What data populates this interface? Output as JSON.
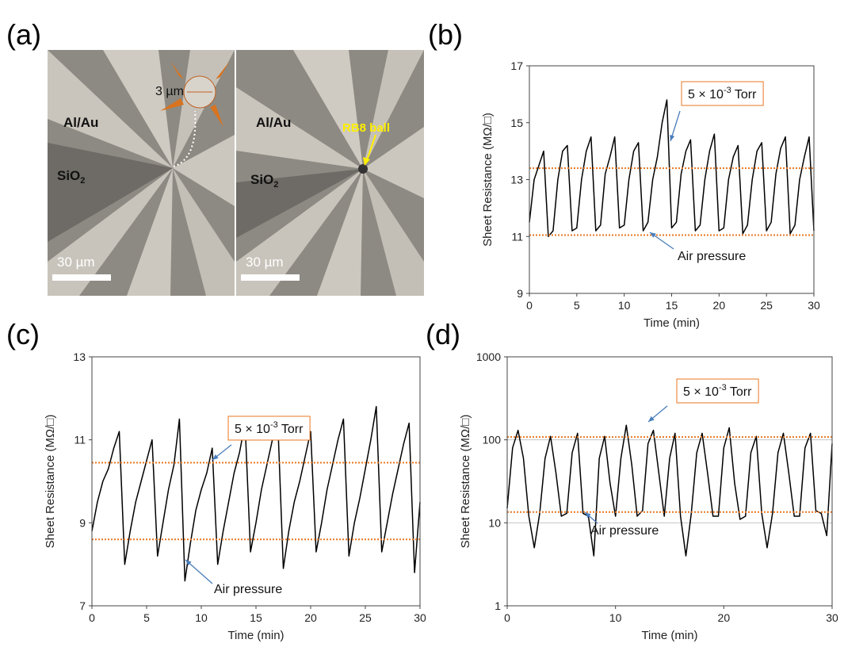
{
  "panel_a": {
    "panel_label": "(a)",
    "metal_label": "Al/Au",
    "oxide_label": "SiO",
    "oxide_subscript": "2",
    "inset_scale": "3 µm",
    "scale_bar": "30 µm",
    "ball_label": "RB8 ball"
  },
  "chart_data": [
    {
      "type": "line",
      "panel_label": "(b)",
      "x_label": "Time (min)",
      "y_label": "Sheet Resistance (MΩ/□)",
      "xlim": [
        0,
        30
      ],
      "xticks": [
        0,
        5,
        10,
        15,
        20,
        25,
        30
      ],
      "ylim": [
        9,
        17
      ],
      "yticks": [
        9,
        11,
        13,
        15,
        17
      ],
      "yscale": "linear",
      "x": [
        0,
        0.5,
        1,
        1.5,
        2,
        2.5,
        3,
        3.5,
        4,
        4.5,
        5,
        5.5,
        6,
        6.5,
        7,
        7.5,
        8,
        8.5,
        9,
        9.5,
        10,
        10.5,
        11,
        11.5,
        12,
        12.5,
        13,
        13.5,
        14,
        14.5,
        15,
        15.5,
        16,
        16.5,
        17,
        17.5,
        18,
        18.5,
        19,
        19.5,
        20,
        20.5,
        21,
        21.5,
        22,
        22.5,
        23,
        23.5,
        24,
        24.5,
        25,
        25.5,
        26,
        26.5,
        27,
        27.5,
        28,
        28.5,
        29,
        29.5,
        30
      ],
      "series": [
        {
          "color": "#000000",
          "values": [
            11.5,
            13,
            13.5,
            14,
            11,
            11.2,
            13,
            14,
            14.2,
            11.2,
            11.3,
            13,
            14,
            14.5,
            11.2,
            11.4,
            13.2,
            13.8,
            14.5,
            11.3,
            11.4,
            13,
            14,
            14.3,
            11.2,
            11.5,
            13,
            13.8,
            15,
            15.8,
            11.3,
            11.5,
            13.2,
            14,
            14.4,
            11.2,
            11.4,
            13,
            14,
            14.6,
            11.2,
            11.3,
            13,
            13.8,
            14.2,
            11.1,
            11.4,
            13,
            14,
            14.3,
            11.2,
            11.5,
            13.2,
            14.1,
            14.5,
            11.1,
            11.4,
            13,
            13.8,
            14.5,
            11.2
          ]
        }
      ],
      "reference_lines": [
        {
          "value": 13.4,
          "color": "#e87722"
        },
        {
          "value": 11.05,
          "color": "#e87722"
        }
      ],
      "annotations": [
        {
          "text": "5 × 10",
          "superscript": "-3",
          "suffix": " Torr"
        },
        {
          "text": "Air pressure"
        }
      ]
    },
    {
      "type": "line",
      "panel_label": "(c)",
      "x_label": "Time (min)",
      "y_label": "Sheet Resistance (MΩ/□)",
      "xlim": [
        0,
        30
      ],
      "xticks": [
        0,
        5,
        10,
        15,
        20,
        25,
        30
      ],
      "ylim": [
        7,
        13
      ],
      "yticks": [
        7,
        9,
        11,
        13
      ],
      "yscale": "linear",
      "x": [
        0,
        0.5,
        1,
        1.5,
        2,
        2.5,
        3,
        3.5,
        4,
        4.5,
        5,
        5.5,
        6,
        6.5,
        7,
        7.5,
        8,
        8.5,
        9,
        9.5,
        10,
        10.5,
        11,
        11.5,
        12,
        12.5,
        13,
        13.5,
        14,
        14.5,
        15,
        15.5,
        16,
        16.5,
        17,
        17.5,
        18,
        18.5,
        19,
        19.5,
        20,
        20.5,
        21,
        21.5,
        22,
        22.5,
        23,
        23.5,
        24,
        24.5,
        25,
        25.5,
        26,
        26.5,
        27,
        27.5,
        28,
        28.5,
        29,
        29.5,
        30
      ],
      "series": [
        {
          "color": "#000000",
          "values": [
            8.8,
            9.5,
            10,
            10.3,
            10.8,
            11.2,
            8,
            8.8,
            9.5,
            10,
            10.5,
            11,
            8.2,
            9,
            9.8,
            10.4,
            11.5,
            7.6,
            8.5,
            9.3,
            9.8,
            10.2,
            10.8,
            8,
            8.8,
            9.5,
            10.2,
            10.7,
            11.4,
            8.3,
            9,
            9.8,
            10.4,
            11,
            11.4,
            7.9,
            8.8,
            9.5,
            10,
            10.6,
            11.2,
            8.3,
            9,
            9.8,
            10.4,
            11,
            11.5,
            8.2,
            9,
            9.6,
            10.3,
            11,
            11.8,
            8.3,
            9,
            9.7,
            10.3,
            10.9,
            11.4,
            7.8,
            9.5
          ]
        }
      ],
      "reference_lines": [
        {
          "value": 10.45,
          "color": "#e87722"
        },
        {
          "value": 8.6,
          "color": "#e87722"
        }
      ],
      "annotations": [
        {
          "text": "5 × 10",
          "superscript": "-3",
          "suffix": " Torr"
        },
        {
          "text": "Air pressure"
        }
      ]
    },
    {
      "type": "line",
      "panel_label": "(d)",
      "x_label": "Time (min)",
      "y_label": "Sheet Resistance (MΩ/□)",
      "xlim": [
        0,
        30
      ],
      "xticks": [
        0,
        10,
        20,
        30
      ],
      "ylim": [
        1,
        1000
      ],
      "yticks": [
        1,
        10,
        100,
        1000
      ],
      "yscale": "log",
      "grid": true,
      "x": [
        0,
        0.5,
        1,
        1.5,
        2,
        2.5,
        3,
        3.5,
        4,
        4.5,
        5,
        5.5,
        6,
        6.5,
        7,
        7.5,
        8,
        8.5,
        9,
        9.5,
        10,
        10.5,
        11,
        11.5,
        12,
        12.5,
        13,
        13.5,
        14,
        14.5,
        15,
        15.5,
        16,
        16.5,
        17,
        17.5,
        18,
        18.5,
        19,
        19.5,
        20,
        20.5,
        21,
        21.5,
        22,
        22.5,
        23,
        23.5,
        24,
        24.5,
        25,
        25.5,
        26,
        26.5,
        27,
        27.5,
        28,
        28.5,
        29,
        29.5,
        30
      ],
      "series": [
        {
          "color": "#000000",
          "values": [
            15,
            80,
            130,
            60,
            12,
            5,
            13,
            60,
            110,
            40,
            12,
            13,
            70,
            120,
            13,
            12,
            4,
            60,
            110,
            30,
            12,
            60,
            150,
            50,
            12,
            14,
            90,
            130,
            40,
            12,
            60,
            120,
            12,
            4,
            13,
            70,
            120,
            40,
            12,
            12,
            80,
            140,
            30,
            11,
            12,
            70,
            110,
            13,
            5,
            13,
            70,
            120,
            40,
            12,
            12,
            80,
            120,
            14,
            13,
            7,
            90
          ]
        }
      ],
      "reference_lines": [
        {
          "value": 108,
          "color": "#e87722"
        },
        {
          "value": 13.5,
          "color": "#e87722"
        }
      ],
      "annotations": [
        {
          "text": "5 × 10",
          "superscript": "-3",
          "suffix": " Torr"
        },
        {
          "text": "Air pressure"
        }
      ]
    }
  ]
}
